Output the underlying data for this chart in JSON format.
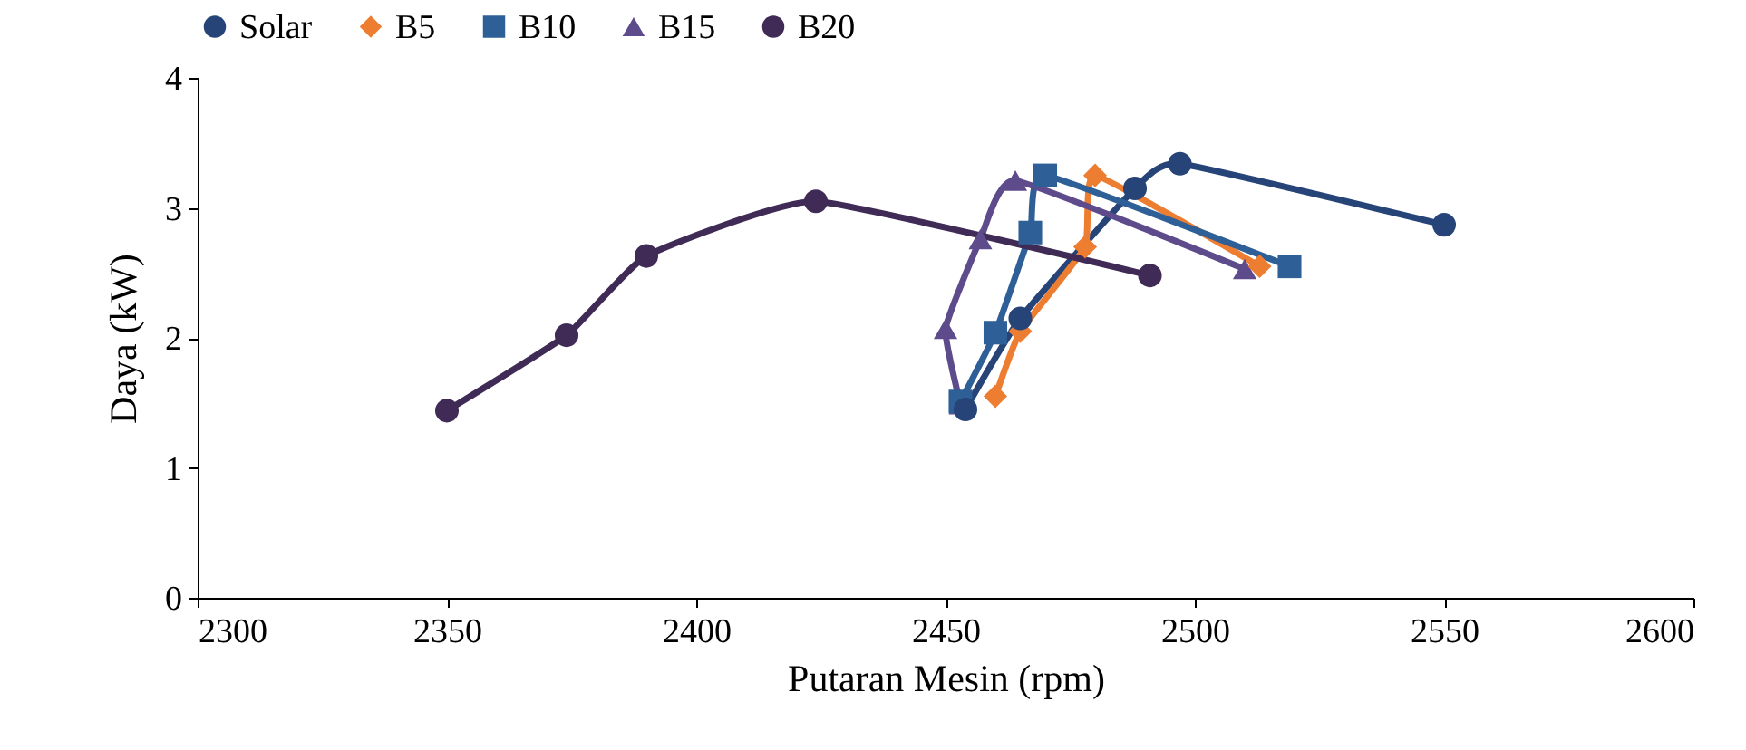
{
  "chart_data": {
    "type": "line",
    "xlabel": "Putaran Mesin (rpm)",
    "ylabel": "Daya (kW)",
    "xlim": [
      2300,
      2600
    ],
    "xticks": [
      2300,
      2350,
      2400,
      2450,
      2500,
      2550,
      2600
    ],
    "ylim": [
      0,
      4
    ],
    "yticks": [
      0,
      1,
      2,
      3,
      4
    ],
    "grid": false,
    "legend": "top",
    "line_style": "solid",
    "series": [
      {
        "name": "Solar",
        "color": "#264478",
        "marker": "circle",
        "x": [
          2454,
          2465,
          2488,
          2497,
          2550
        ],
        "values": [
          1.45,
          2.15,
          3.15,
          3.34,
          2.87
        ]
      },
      {
        "name": "B5",
        "color": "#ed7d31",
        "marker": "diamond",
        "x": [
          2460,
          2465,
          2478,
          2480,
          2513
        ],
        "values": [
          1.55,
          2.05,
          2.7,
          3.25,
          2.55
        ]
      },
      {
        "name": "B10",
        "color": "#2e5f96",
        "marker": "square",
        "x": [
          2453,
          2460,
          2467,
          2470,
          2519
        ],
        "values": [
          1.51,
          2.04,
          2.81,
          3.25,
          2.55
        ]
      },
      {
        "name": "B15",
        "color": "#5e4b8b",
        "marker": "triangle",
        "x": [
          2453,
          2450,
          2457,
          2464,
          2510
        ],
        "values": [
          1.49,
          2.07,
          2.76,
          3.21,
          2.53
        ]
      },
      {
        "name": "B20",
        "color": "#3f2b56",
        "marker": "circle",
        "x": [
          2350,
          2374,
          2390,
          2424,
          2491
        ],
        "values": [
          1.44,
          2.02,
          2.63,
          3.05,
          2.48
        ]
      }
    ]
  }
}
